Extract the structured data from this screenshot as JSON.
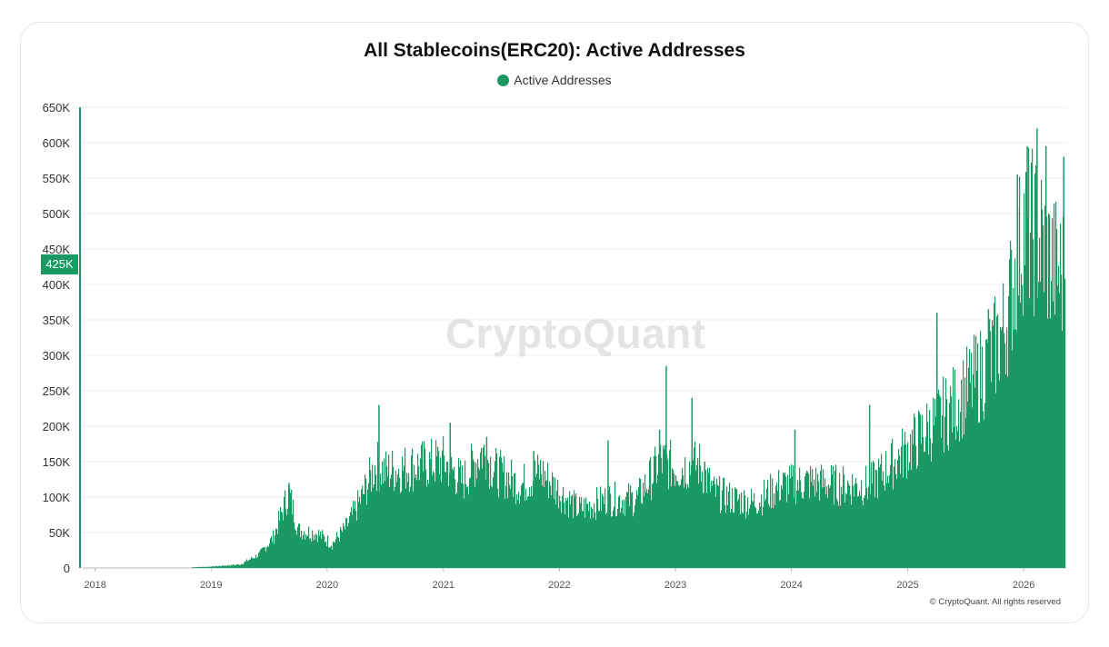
{
  "chart_data": {
    "type": "bar",
    "title": "All Stablecoins(ERC20): Active Addresses",
    "legend": [
      "Active Addresses"
    ],
    "legend_position": "top-center",
    "series_color": "#1a9a62",
    "y_ticks": [
      "0",
      "50K",
      "100K",
      "150K",
      "200K",
      "250K",
      "300K",
      "350K",
      "400K",
      "450K",
      "500K",
      "550K",
      "600K",
      "650K"
    ],
    "ylim": [
      0,
      650000
    ],
    "x_ticks": [
      "2018",
      "2019",
      "2020",
      "2021",
      "2022",
      "2023",
      "2024",
      "2025",
      "2026"
    ],
    "xlim": [
      "2017-11-20",
      "2026-05-15"
    ],
    "grid": true,
    "current_value_label": "425K",
    "series": [
      {
        "name": "Active Addresses",
        "points": [
          [
            "2018-11-01",
            1000
          ],
          [
            "2019-01-01",
            2000
          ],
          [
            "2019-04-01",
            5000
          ],
          [
            "2019-06-01",
            20000
          ],
          [
            "2019-07-15",
            45000
          ],
          [
            "2019-09-01",
            110000
          ],
          [
            "2019-10-01",
            55000
          ],
          [
            "2019-12-01",
            50000
          ],
          [
            "2020-01-15",
            35000
          ],
          [
            "2020-03-01",
            60000
          ],
          [
            "2020-04-15",
            100000
          ],
          [
            "2020-06-01",
            150000
          ],
          [
            "2020-07-01",
            140000
          ],
          [
            "2020-09-01",
            145000
          ],
          [
            "2020-11-01",
            150000
          ],
          [
            "2021-01-01",
            155000
          ],
          [
            "2021-03-01",
            125000
          ],
          [
            "2021-05-01",
            170000
          ],
          [
            "2021-06-15",
            140000
          ],
          [
            "2021-09-01",
            120000
          ],
          [
            "2021-11-01",
            140000
          ],
          [
            "2022-01-01",
            110000
          ],
          [
            "2022-03-01",
            85000
          ],
          [
            "2022-06-01",
            100000
          ],
          [
            "2022-09-01",
            100000
          ],
          [
            "2022-11-15",
            155000
          ],
          [
            "2023-01-01",
            145000
          ],
          [
            "2023-03-15",
            150000
          ],
          [
            "2023-05-01",
            110000
          ],
          [
            "2023-07-01",
            100000
          ],
          [
            "2023-09-01",
            95000
          ],
          [
            "2023-12-01",
            120000
          ],
          [
            "2024-03-01",
            125000
          ],
          [
            "2024-06-01",
            120000
          ],
          [
            "2024-09-01",
            120000
          ],
          [
            "2024-12-01",
            160000
          ],
          [
            "2025-03-01",
            200000
          ],
          [
            "2025-06-01",
            240000
          ],
          [
            "2025-09-01",
            290000
          ],
          [
            "2025-11-01",
            350000
          ],
          [
            "2026-01-01",
            500000
          ],
          [
            "2026-02-15",
            480000
          ],
          [
            "2026-04-01",
            440000
          ],
          [
            "2026-05-01",
            425000
          ]
        ]
      }
    ],
    "spikes": [
      [
        "2019-09-01",
        120000
      ],
      [
        "2020-06-10",
        230000
      ],
      [
        "2021-01-20",
        205000
      ],
      [
        "2021-05-15",
        185000
      ],
      [
        "2021-10-10",
        165000
      ],
      [
        "2022-06-01",
        180000
      ],
      [
        "2022-11-10",
        195000
      ],
      [
        "2022-12-01",
        285000
      ],
      [
        "2023-02-20",
        240000
      ],
      [
        "2023-04-01",
        150000
      ],
      [
        "2024-01-10",
        195000
      ],
      [
        "2024-09-01",
        230000
      ],
      [
        "2025-04-01",
        360000
      ],
      [
        "2025-09-10",
        365000
      ],
      [
        "2025-12-10",
        555000
      ],
      [
        "2026-01-10",
        595000
      ],
      [
        "2026-02-10",
        620000
      ],
      [
        "2026-03-10",
        595000
      ],
      [
        "2026-05-05",
        580000
      ]
    ]
  },
  "watermark": "CryptoQuant",
  "copyright": "© CryptoQuant. All rights reserved"
}
